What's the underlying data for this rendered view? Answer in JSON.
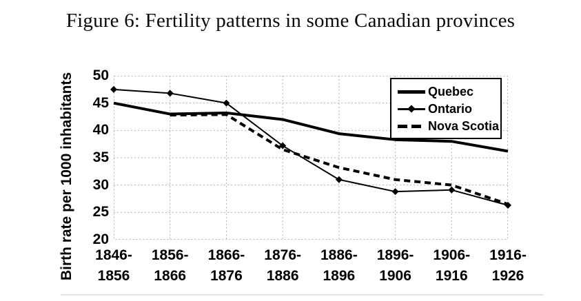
{
  "figure": {
    "title": "Figure 6: Fertility patterns in some Canadian provinces"
  },
  "chart_data": {
    "type": "line",
    "title": "Figure 6: Fertility patterns in some Canadian provinces",
    "xlabel": "",
    "ylabel": "Birth rate per 1000 inhabitants",
    "ylim": [
      20,
      50
    ],
    "yticks": [
      50,
      45,
      40,
      35,
      30,
      25,
      20
    ],
    "grid": "dotted",
    "legend_position": "top-right",
    "categories": [
      "1846-1856",
      "1856-1866",
      "1866-1876",
      "1876-1886",
      "1886-1896",
      "1896-1906",
      "1906-1916",
      "1916-1926"
    ],
    "series": [
      {
        "name": "Quebec",
        "line": "solid-thick",
        "marker": "none",
        "values": [
          45,
          43,
          43.2,
          42,
          39.4,
          38.3,
          38,
          36.2
        ]
      },
      {
        "name": "Ontario",
        "line": "solid-thin",
        "marker": "diamond",
        "values": [
          47.5,
          46.8,
          45,
          37.2,
          31,
          28.8,
          29.1,
          26.3
        ]
      },
      {
        "name": "Nova Scotia",
        "line": "dashed-thick",
        "marker": "none",
        "values": [
          null,
          42.8,
          42.9,
          36.5,
          33.2,
          31,
          30,
          26.5
        ]
      }
    ],
    "colors": {
      "series": "#000000",
      "grid": "#b3b3b3",
      "background": "#ffffff",
      "legend_border": "#000000"
    }
  }
}
